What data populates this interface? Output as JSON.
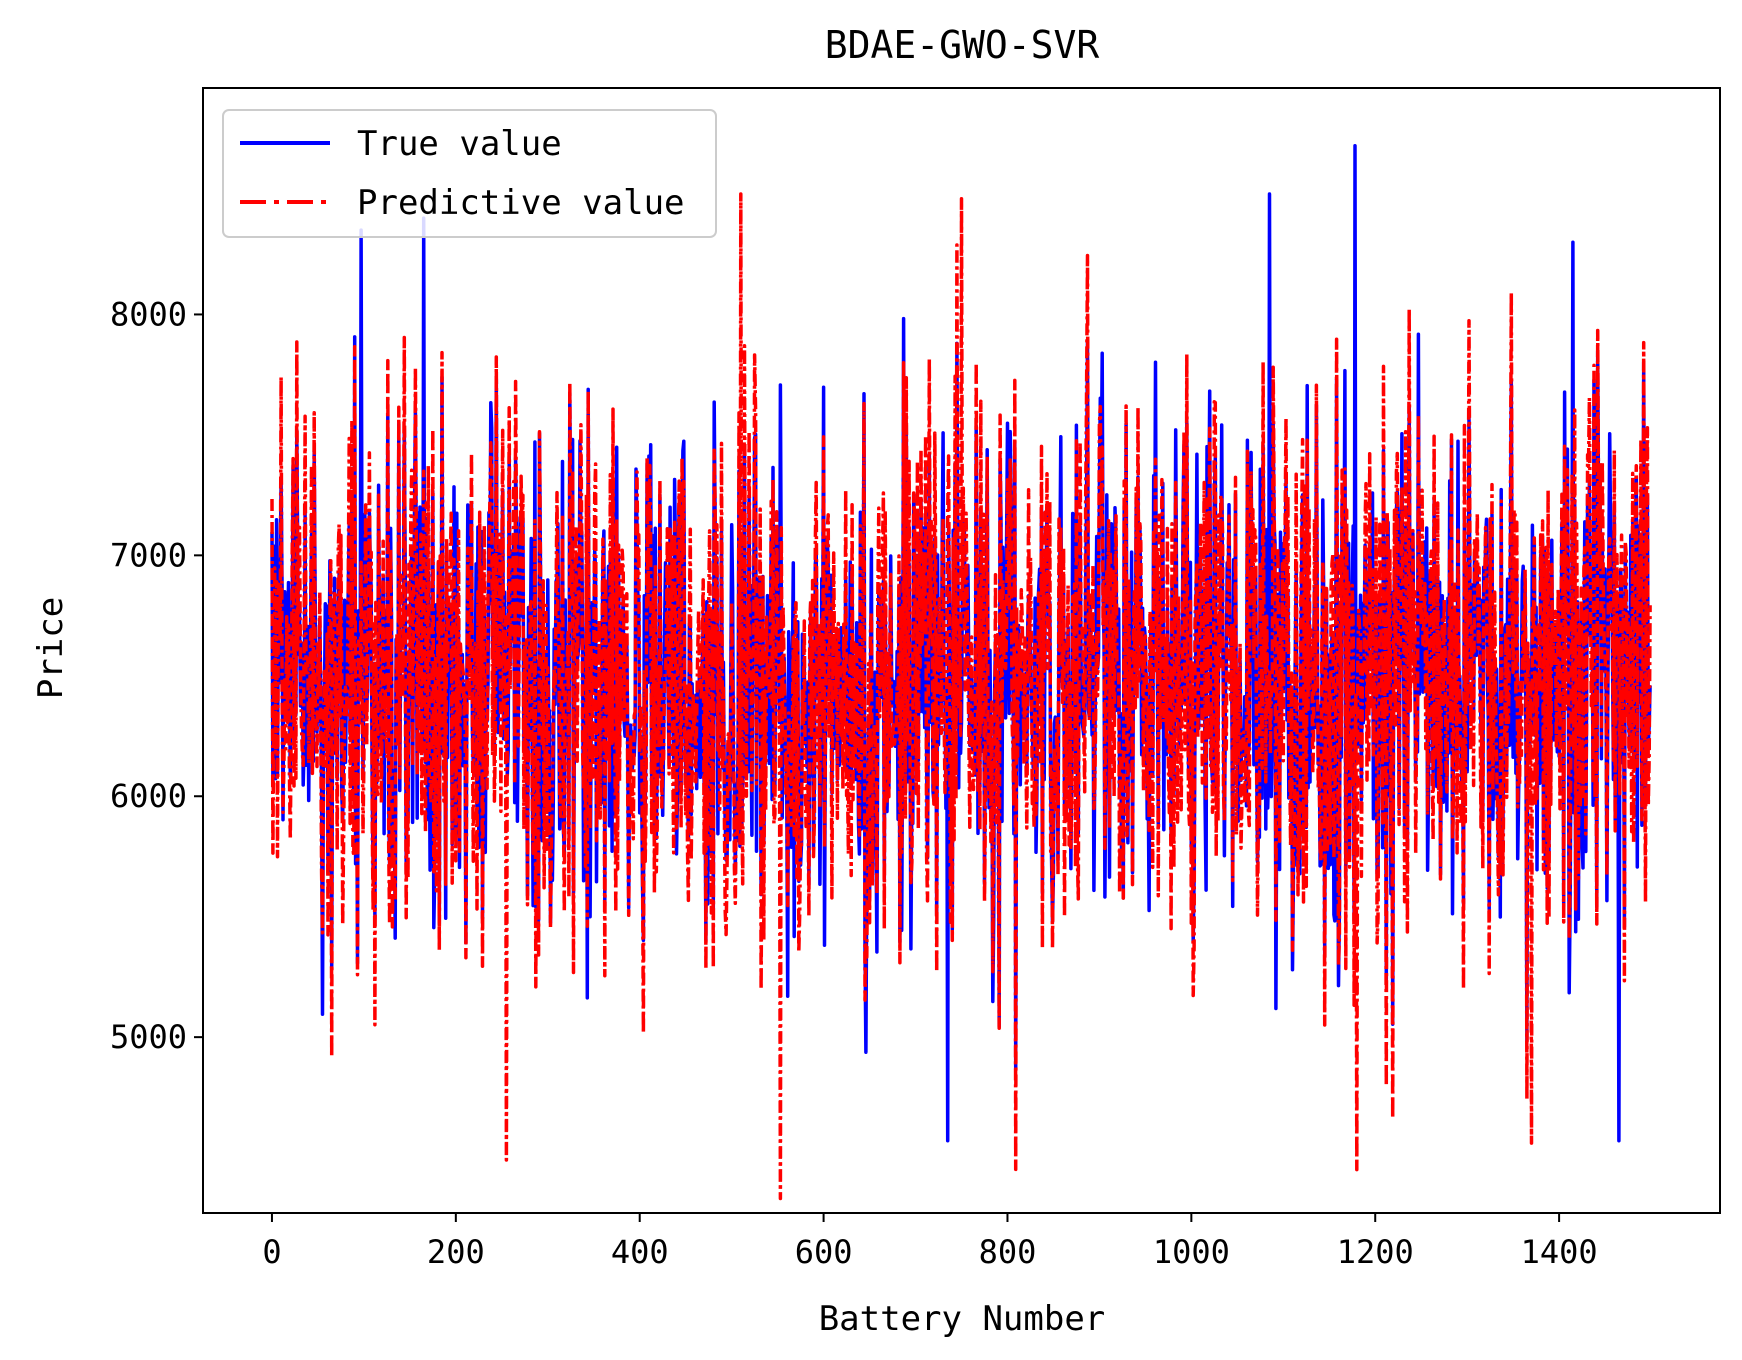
{
  "chart_data": {
    "type": "line",
    "title": "BDAE-GWO-SVR",
    "xlabel": "Battery Number",
    "ylabel": "Price",
    "xlim": [
      -75,
      1575
    ],
    "ylim": [
      4270,
      8940
    ],
    "x_ticks": [
      0,
      200,
      400,
      600,
      800,
      1000,
      1200,
      1400
    ],
    "y_ticks": [
      5000,
      6000,
      7000,
      8000
    ],
    "grid": false,
    "legend": {
      "position": "top-left"
    },
    "n_points": 1500,
    "series": [
      {
        "name": "True value",
        "color": "#0000ff",
        "style": "solid",
        "range": [
          4560,
          8700
        ],
        "mean": 6500,
        "features": [
          {
            "x": 1178,
            "y": 8700
          },
          {
            "x": 1085,
            "y": 8500
          },
          {
            "x": 97,
            "y": 8350
          },
          {
            "x": 165,
            "y": 8400
          },
          {
            "x": 1415,
            "y": 8300
          },
          {
            "x": 735,
            "y": 4570
          },
          {
            "x": 1465,
            "y": 4570
          }
        ]
      },
      {
        "name": "Predictive value",
        "color": "#ff0000",
        "style": "dashdot",
        "range": [
          4330,
          8500
        ],
        "mean": 6500,
        "features": [
          {
            "x": 510,
            "y": 8500
          },
          {
            "x": 750,
            "y": 8480
          },
          {
            "x": 553,
            "y": 4330
          },
          {
            "x": 255,
            "y": 4490
          },
          {
            "x": 1180,
            "y": 4450
          },
          {
            "x": 1370,
            "y": 4560
          }
        ]
      }
    ]
  }
}
